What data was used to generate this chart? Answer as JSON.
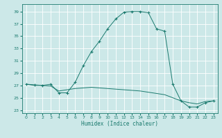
{
  "xlabel": "Humidex (Indice chaleur)",
  "bg_color": "#cce8e8",
  "grid_color": "#ffffff",
  "line_color": "#1a7a6e",
  "xlim": [
    -0.5,
    23.5
  ],
  "ylim": [
    22.5,
    40.2
  ],
  "xticks": [
    0,
    1,
    2,
    3,
    4,
    5,
    6,
    7,
    8,
    9,
    10,
    11,
    12,
    13,
    14,
    15,
    16,
    17,
    18,
    19,
    20,
    21,
    22,
    23
  ],
  "yticks": [
    23,
    25,
    27,
    29,
    31,
    33,
    35,
    37,
    39
  ],
  "line1_x": [
    0,
    1,
    2,
    3,
    4,
    5,
    6,
    7,
    8,
    9,
    10,
    11,
    12,
    13,
    14,
    15,
    16,
    17,
    18,
    19,
    20,
    21,
    22,
    23
  ],
  "line1_y": [
    27.2,
    27.1,
    27.0,
    27.2,
    25.8,
    25.8,
    27.5,
    30.2,
    32.5,
    34.2,
    36.2,
    37.8,
    38.9,
    39.0,
    39.0,
    38.8,
    36.2,
    35.8,
    27.2,
    24.5,
    23.5,
    23.5,
    24.2,
    24.5
  ],
  "line2_x": [
    0,
    1,
    2,
    3,
    4,
    5,
    6,
    7,
    8,
    9,
    10,
    11,
    12,
    13,
    14,
    15,
    16,
    17,
    18,
    19,
    20,
    21,
    22,
    23
  ],
  "line2_y": [
    27.2,
    27.0,
    27.0,
    26.9,
    26.1,
    26.3,
    26.5,
    26.6,
    26.7,
    26.6,
    26.5,
    26.4,
    26.3,
    26.2,
    26.1,
    25.9,
    25.7,
    25.5,
    25.0,
    24.5,
    24.2,
    24.0,
    24.4,
    24.5
  ]
}
